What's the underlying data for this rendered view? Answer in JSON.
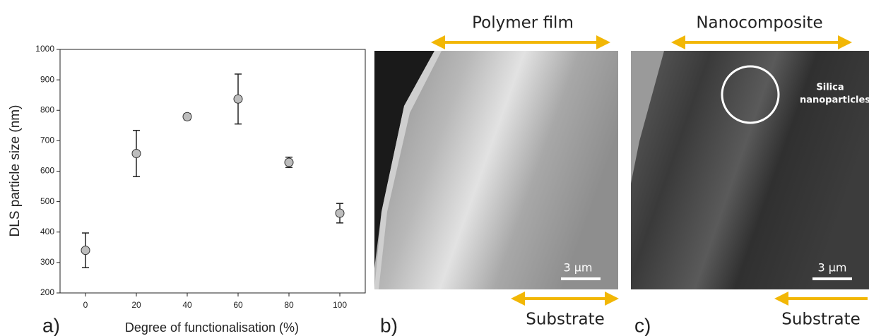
{
  "chart_data": {
    "type": "scatter",
    "y_label": "DLS particle size (nm)",
    "x_label": "Degree of functionalisation (%)",
    "x": [
      0,
      20,
      40,
      60,
      80,
      100
    ],
    "values": [
      340,
      658,
      779,
      837,
      629,
      462
    ],
    "errors": [
      57,
      76,
      10,
      82,
      17,
      32
    ],
    "color": "#bdbdbd",
    "xlim": [
      -10,
      110
    ],
    "ylim": [
      200,
      1000
    ],
    "xticks": [
      0,
      20,
      40,
      60,
      80,
      100
    ],
    "yticks": [
      200,
      300,
      400,
      500,
      600,
      700,
      800,
      900,
      1000
    ]
  },
  "panel_labels": [
    "a)",
    "b)",
    "c)"
  ],
  "images": [
    {
      "top_label": "Polymer film",
      "bottom_label": "Substrate",
      "scale_bar": "3 µm"
    },
    {
      "top_label": "Nanocomposite",
      "bottom_label": "Substrate",
      "scale_bar": "3 µm",
      "annotation": [
        "Silica",
        "nanoparticles"
      ]
    }
  ]
}
